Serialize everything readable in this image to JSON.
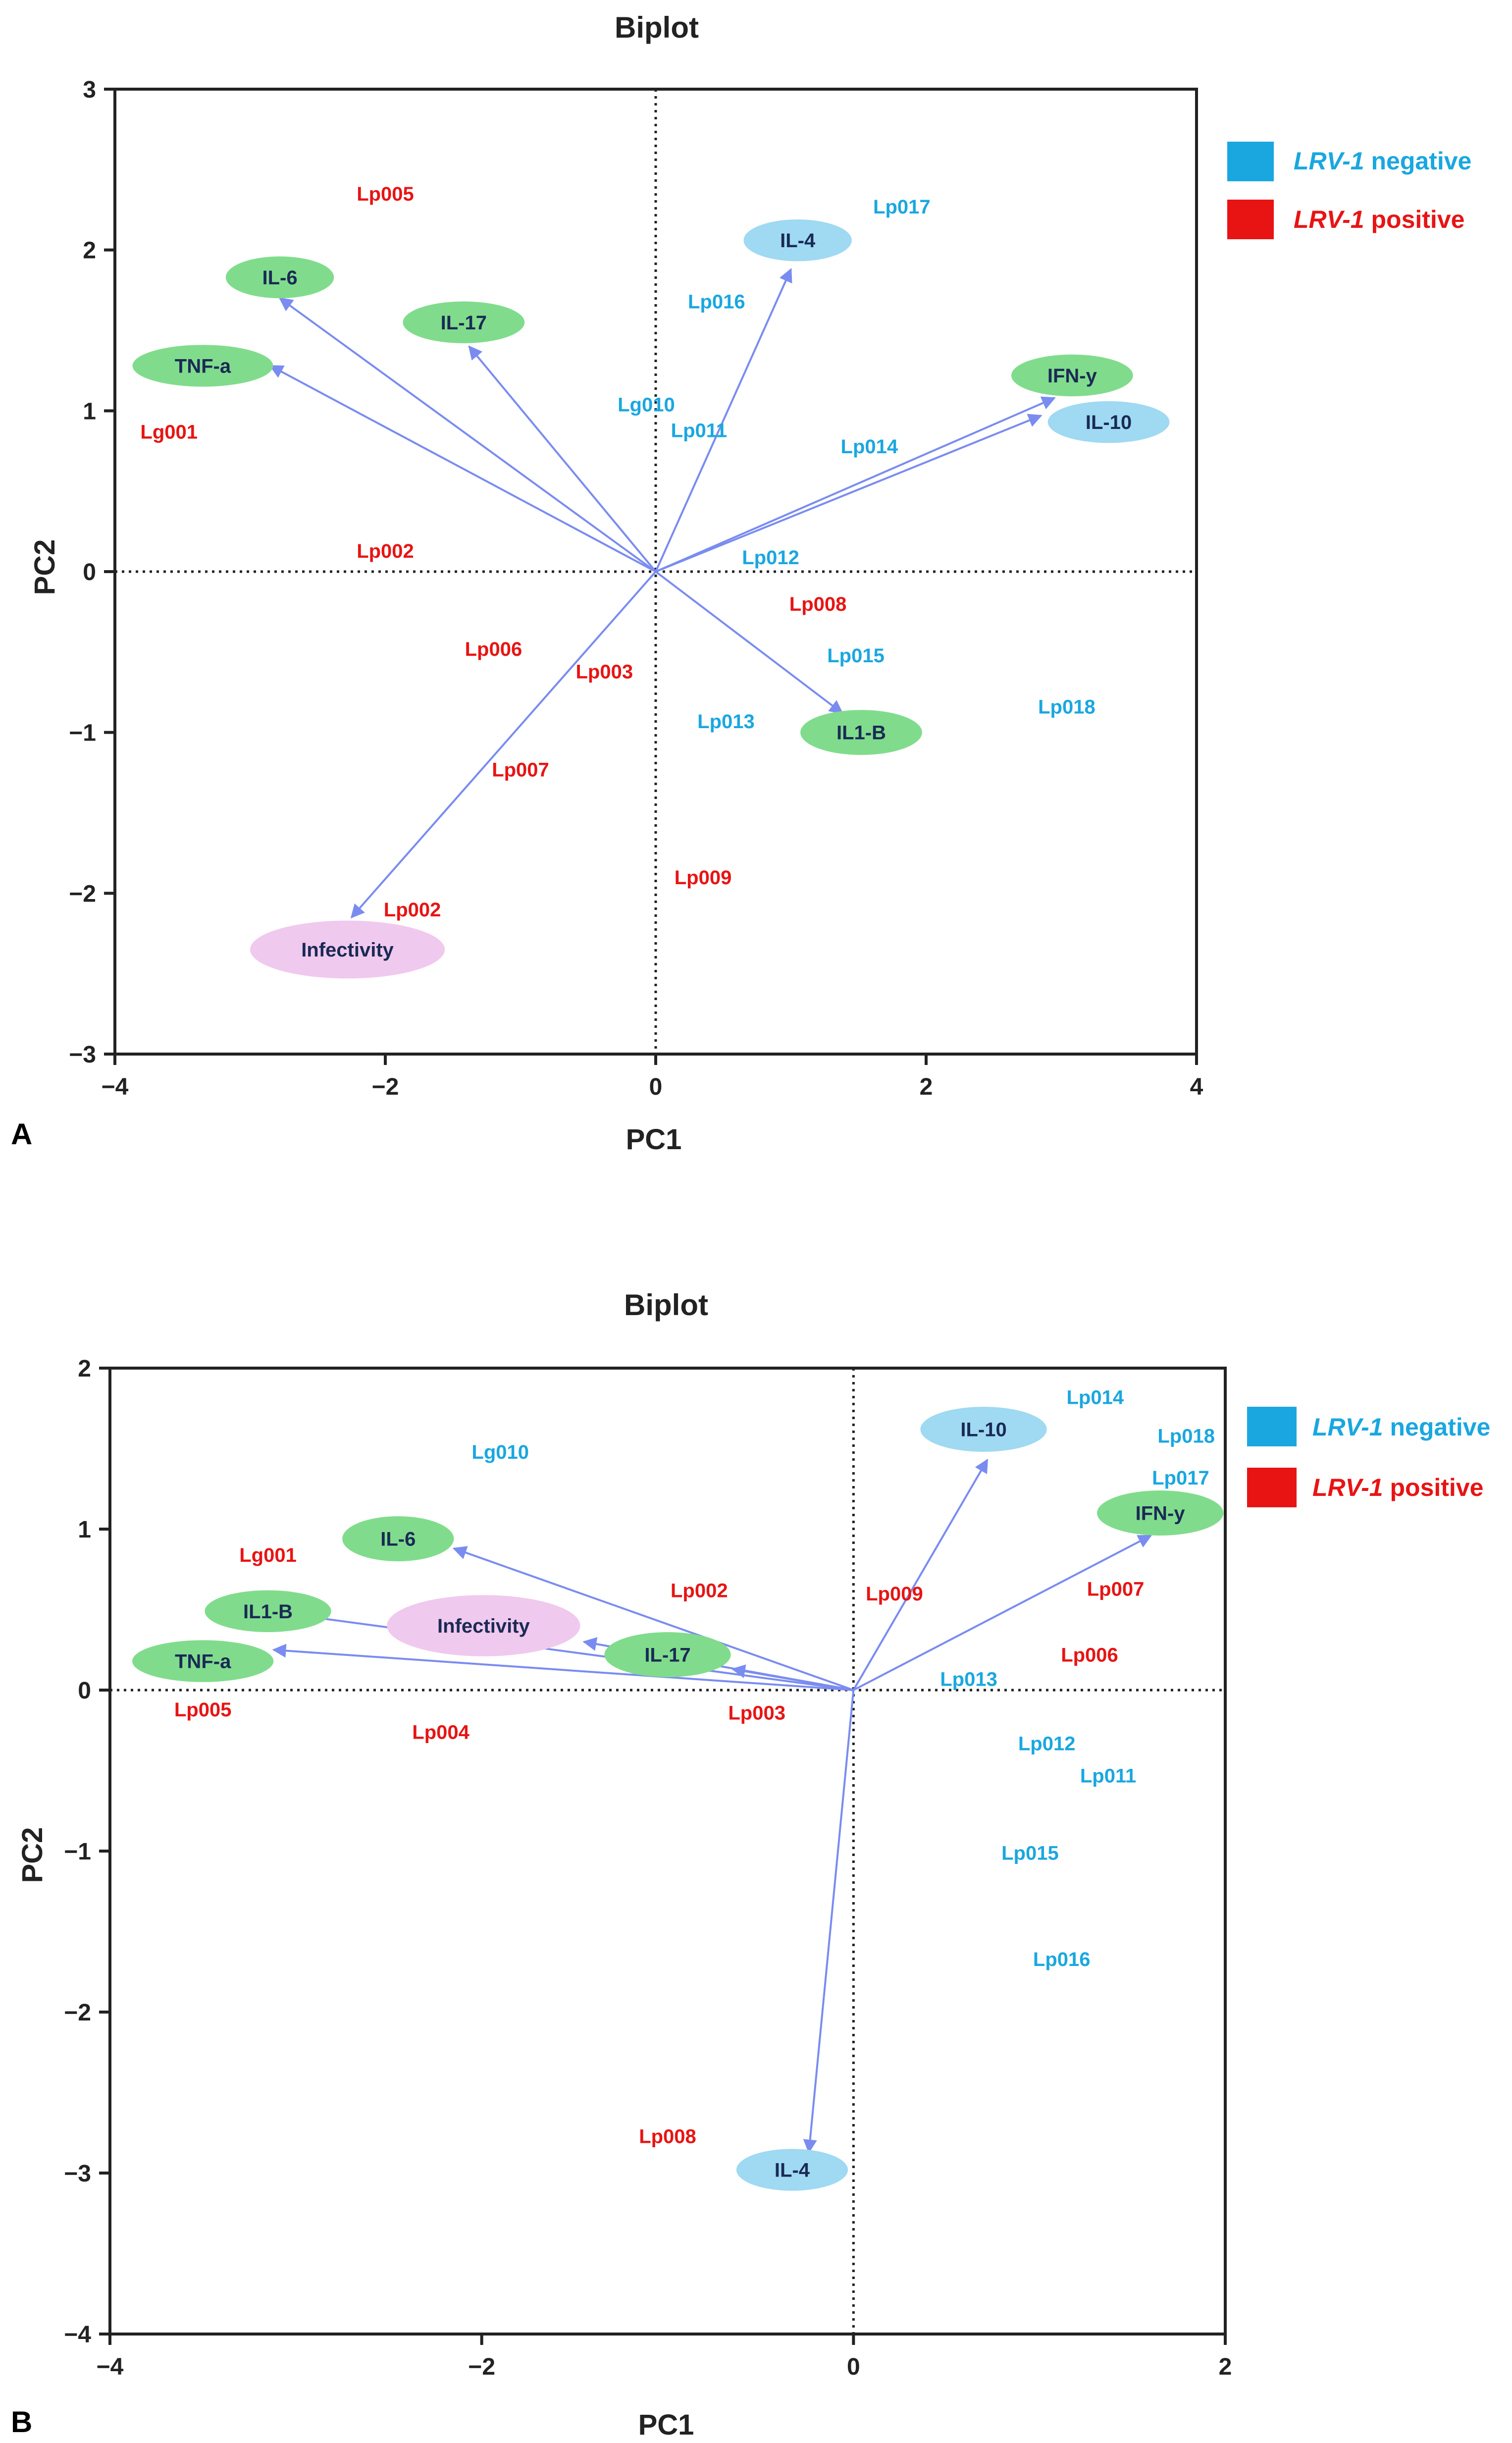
{
  "colors": {
    "lrv_negative": "#1aa7e0",
    "lrv_positive": "#e81414",
    "arrow": "#7a8cf0",
    "cytokine_ellipse": "#80dc8c",
    "il_blue_ellipse": "#9fd9f2",
    "infectivity_ellipse": "#f0c9ee"
  },
  "legend": {
    "negative": {
      "italic": "LRV-1",
      "rest": " negative"
    },
    "positive": {
      "italic": "LRV-1",
      "rest": " positive"
    }
  },
  "chart_data": [
    {
      "type": "scatter",
      "panel": "A",
      "title": "Biplot",
      "xlabel": "PC1",
      "ylabel": "PC2",
      "xlim": [
        -4,
        4
      ],
      "ylim": [
        -3,
        3
      ],
      "xticks": [
        -4,
        -2,
        0,
        2,
        4
      ],
      "yticks": [
        -3,
        -2,
        -1,
        0,
        1,
        2,
        3
      ],
      "xtick_labels": [
        "−4",
        "−2",
        "0",
        "2",
        "4"
      ],
      "ytick_labels": [
        "−3",
        "−2",
        "−1",
        "0",
        "1",
        "2",
        "3"
      ],
      "samples": [
        {
          "label": "Lp005",
          "x": -2.0,
          "y": 2.35,
          "group": "positive"
        },
        {
          "label": "Lg001",
          "x": -3.6,
          "y": 0.87,
          "group": "positive"
        },
        {
          "label": "Lp002",
          "x": -2.0,
          "y": 0.13,
          "group": "positive"
        },
        {
          "label": "Lp006",
          "x": -1.2,
          "y": -0.48,
          "group": "positive"
        },
        {
          "label": "Lp003",
          "x": -0.38,
          "y": -0.62,
          "group": "positive"
        },
        {
          "label": "Lp007",
          "x": -1.0,
          "y": -1.23,
          "group": "positive"
        },
        {
          "label": "Lp002",
          "x": -1.8,
          "y": -2.1,
          "group": "positive"
        },
        {
          "label": "Lp009",
          "x": 0.35,
          "y": -1.9,
          "group": "positive"
        },
        {
          "label": "Lp008",
          "x": 1.2,
          "y": -0.2,
          "group": "positive"
        },
        {
          "label": "Lp017",
          "x": 1.82,
          "y": 2.27,
          "group": "negative"
        },
        {
          "label": "Lp016",
          "x": 0.45,
          "y": 1.68,
          "group": "negative"
        },
        {
          "label": "Lg010",
          "x": -0.07,
          "y": 1.04,
          "group": "negative"
        },
        {
          "label": "Lp011",
          "x": 0.32,
          "y": 0.88,
          "group": "negative"
        },
        {
          "label": "Lp014",
          "x": 1.58,
          "y": 0.78,
          "group": "negative"
        },
        {
          "label": "Lp012",
          "x": 0.85,
          "y": 0.09,
          "group": "negative"
        },
        {
          "label": "Lp015",
          "x": 1.48,
          "y": -0.52,
          "group": "negative"
        },
        {
          "label": "Lp013",
          "x": 0.52,
          "y": -0.93,
          "group": "negative"
        },
        {
          "label": "Lp018",
          "x": 3.04,
          "y": -0.84,
          "group": "negative"
        }
      ],
      "loadings": [
        {
          "label": "IL-6",
          "x": -2.78,
          "y": 1.7,
          "tip": [
            -2.78,
            1.7
          ],
          "center": [
            -2.78,
            1.83
          ],
          "rx": 0.4,
          "ry": 0.13,
          "color": "green"
        },
        {
          "label": "IL-17",
          "x": -1.38,
          "y": 1.4,
          "tip": [
            -1.38,
            1.4
          ],
          "center": [
            -1.42,
            1.55
          ],
          "rx": 0.45,
          "ry": 0.13,
          "color": "green"
        },
        {
          "label": "TNF-a",
          "x": -2.85,
          "y": 1.28,
          "tip": [
            -2.85,
            1.28
          ],
          "center": [
            -3.35,
            1.28
          ],
          "rx": 0.52,
          "ry": 0.13,
          "color": "green"
        },
        {
          "label": "IL-4",
          "x": 1.0,
          "y": 1.88,
          "tip": [
            1.0,
            1.88
          ],
          "center": [
            1.05,
            2.06
          ],
          "rx": 0.4,
          "ry": 0.13,
          "color": "blue"
        },
        {
          "label": "IFN-y",
          "x": 2.95,
          "y": 1.08,
          "tip": [
            2.95,
            1.08
          ],
          "center": [
            3.08,
            1.22
          ],
          "rx": 0.45,
          "ry": 0.13,
          "color": "green"
        },
        {
          "label": "IL-10",
          "x": 2.85,
          "y": 0.97,
          "tip": [
            2.85,
            0.97
          ],
          "center": [
            3.35,
            0.93
          ],
          "rx": 0.45,
          "ry": 0.13,
          "color": "blue"
        },
        {
          "label": "IL1-B",
          "x": 1.38,
          "y": -0.88,
          "tip": [
            1.38,
            -0.88
          ],
          "center": [
            1.52,
            -1.0
          ],
          "rx": 0.45,
          "ry": 0.14,
          "color": "green"
        },
        {
          "label": "Infectivity",
          "x": -2.25,
          "y": -2.15,
          "tip": [
            -2.25,
            -2.15
          ],
          "center": [
            -2.28,
            -2.35
          ],
          "rx": 0.72,
          "ry": 0.18,
          "color": "pink"
        }
      ]
    },
    {
      "type": "scatter",
      "panel": "B",
      "title": "Biplot",
      "xlabel": "PC1",
      "ylabel": "PC2",
      "xlim": [
        -4,
        2
      ],
      "ylim": [
        -4,
        2
      ],
      "xticks": [
        -4,
        -2,
        0,
        2
      ],
      "yticks": [
        -4,
        -3,
        -2,
        -1,
        0,
        1,
        2
      ],
      "xtick_labels": [
        "−4",
        "−2",
        "0",
        "2"
      ],
      "ytick_labels": [
        "−4",
        "−3",
        "−2",
        "−1",
        "0",
        "1",
        "2"
      ],
      "samples": [
        {
          "label": "Lg001",
          "x": -3.15,
          "y": 0.84,
          "group": "positive"
        },
        {
          "label": "Lp005",
          "x": -3.5,
          "y": -0.12,
          "group": "positive"
        },
        {
          "label": "Lp004",
          "x": -2.22,
          "y": -0.26,
          "group": "positive"
        },
        {
          "label": "Lp002",
          "x": -0.83,
          "y": 0.62,
          "group": "positive"
        },
        {
          "label": "Lp003",
          "x": -0.52,
          "y": -0.14,
          "group": "positive"
        },
        {
          "label": "Lp009",
          "x": 0.22,
          "y": 0.6,
          "group": "positive"
        },
        {
          "label": "Lp007",
          "x": 1.41,
          "y": 0.63,
          "group": "positive"
        },
        {
          "label": "Lp006",
          "x": 1.27,
          "y": 0.22,
          "group": "positive"
        },
        {
          "label": "Lp008",
          "x": -1.0,
          "y": -2.77,
          "group": "positive"
        },
        {
          "label": "Lg010",
          "x": -1.9,
          "y": 1.48,
          "group": "negative"
        },
        {
          "label": "Lp014",
          "x": 1.3,
          "y": 1.82,
          "group": "negative"
        },
        {
          "label": "Lp018",
          "x": 1.79,
          "y": 1.58,
          "group": "negative"
        },
        {
          "label": "Lp017",
          "x": 1.76,
          "y": 1.32,
          "group": "negative"
        },
        {
          "label": "Lp013",
          "x": 0.62,
          "y": 0.07,
          "group": "negative"
        },
        {
          "label": "Lp012",
          "x": 1.04,
          "y": -0.33,
          "group": "negative"
        },
        {
          "label": "Lp011",
          "x": 1.37,
          "y": -0.53,
          "group": "negative"
        },
        {
          "label": "Lp015",
          "x": 0.95,
          "y": -1.01,
          "group": "negative"
        },
        {
          "label": "Lp016",
          "x": 1.12,
          "y": -1.67,
          "group": "negative"
        }
      ],
      "loadings": [
        {
          "label": "IL-10",
          "x": 0.72,
          "y": 1.43,
          "tip": [
            0.72,
            1.43
          ],
          "center": [
            0.7,
            1.62
          ],
          "rx": 0.34,
          "ry": 0.14,
          "color": "blue"
        },
        {
          "label": "IFN-y",
          "x": 1.6,
          "y": 0.96,
          "tip": [
            1.6,
            0.96
          ],
          "center": [
            1.65,
            1.1
          ],
          "rx": 0.34,
          "ry": 0.14,
          "color": "green"
        },
        {
          "label": "IL-6",
          "x": -2.15,
          "y": 0.88,
          "tip": [
            -2.15,
            0.88
          ],
          "center": [
            -2.45,
            0.94
          ],
          "rx": 0.3,
          "ry": 0.14,
          "color": "green"
        },
        {
          "label": "IL1-B",
          "x": -3.15,
          "y": 0.49,
          "tip": [
            -3.15,
            0.49
          ],
          "center": [
            -3.15,
            0.49
          ],
          "rx": 0.34,
          "ry": 0.13,
          "color": "green"
        },
        {
          "label": "Infectivity",
          "x": -1.45,
          "y": 0.3,
          "tip": [
            -1.45,
            0.3
          ],
          "center": [
            -1.99,
            0.4
          ],
          "rx": 0.52,
          "ry": 0.19,
          "color": "pink"
        },
        {
          "label": "TNF-a",
          "x": -3.12,
          "y": 0.25,
          "tip": [
            -3.12,
            0.25
          ],
          "center": [
            -3.5,
            0.18
          ],
          "rx": 0.38,
          "ry": 0.13,
          "color": "green"
        },
        {
          "label": "IL-17",
          "x": -0.65,
          "y": 0.13,
          "tip": [
            -0.65,
            0.13
          ],
          "center": [
            -1.0,
            0.22
          ],
          "rx": 0.34,
          "ry": 0.14,
          "color": "green"
        },
        {
          "label": "IL-4",
          "x": -0.24,
          "y": -2.87,
          "tip": [
            -0.24,
            -2.87
          ],
          "center": [
            -0.33,
            -2.98
          ],
          "rx": 0.3,
          "ry": 0.13,
          "color": "blue"
        }
      ]
    }
  ]
}
